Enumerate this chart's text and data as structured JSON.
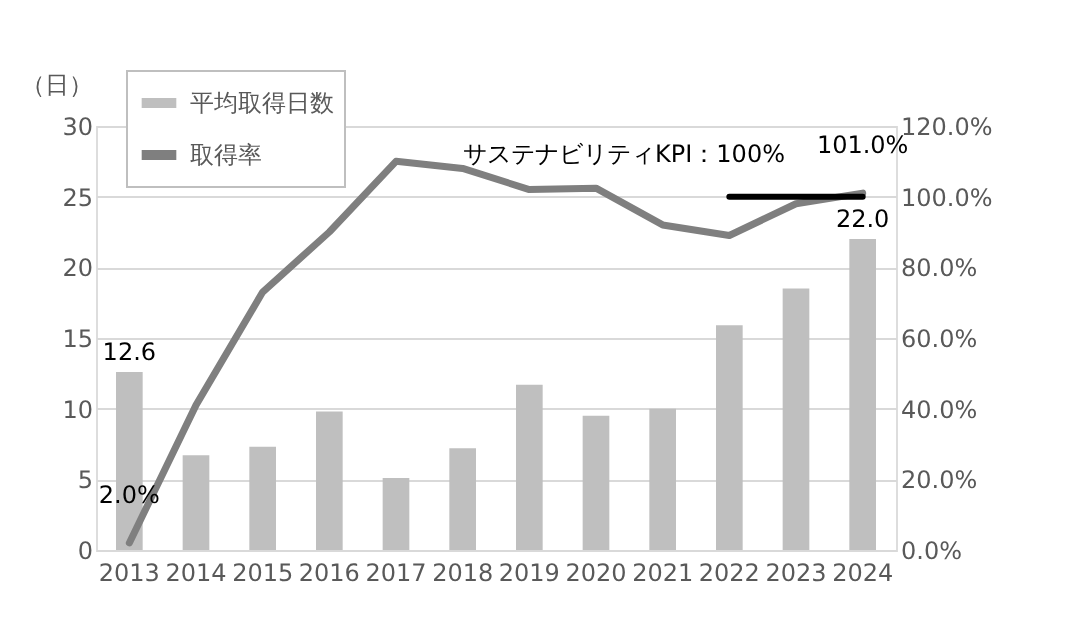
{
  "chart_data": {
    "type": "bar",
    "ylabel": "（日）",
    "categories": [
      "2013",
      "2014",
      "2015",
      "2016",
      "2017",
      "2018",
      "2019",
      "2020",
      "2021",
      "2022",
      "2023",
      "2024"
    ],
    "series": [
      {
        "name": "平均取得日数",
        "color": "#bfbfbf",
        "values": [
          12.6,
          6.7,
          7.3,
          9.8,
          5.1,
          7.2,
          11.7,
          9.5,
          10.0,
          15.9,
          18.5,
          22.0
        ],
        "value_labels": [
          "12.6",
          null,
          null,
          null,
          null,
          null,
          null,
          null,
          null,
          null,
          null,
          "22.0"
        ]
      },
      {
        "name": "取得率",
        "type": "line",
        "axis": "y2",
        "color": "#7f7f7f",
        "values": [
          2.0,
          41,
          73,
          90,
          110,
          108,
          102,
          102.4,
          92,
          89,
          98,
          101.0
        ],
        "value_labels": [
          "2.0%",
          null,
          null,
          null,
          null,
          null,
          null,
          null,
          null,
          null,
          null,
          "101.0%"
        ]
      },
      {
        "type": "line",
        "axis": "y2",
        "color": "#000000",
        "values": [
          null,
          null,
          null,
          null,
          null,
          null,
          null,
          null,
          null,
          100,
          100,
          100
        ]
      }
    ],
    "ylim": [
      0,
      30
    ],
    "yticks": [
      0,
      5,
      10,
      15,
      20,
      25,
      30
    ],
    "y2lim": [
      0,
      120
    ],
    "y2ticks": [
      {
        "value": 0,
        "label": "0.0%"
      },
      {
        "value": 20,
        "label": "20.0%"
      },
      {
        "value": 40,
        "label": "40.0%"
      },
      {
        "value": 60,
        "label": "60.0%"
      },
      {
        "value": 80,
        "label": "80.0%"
      },
      {
        "value": 100,
        "label": "100.0%"
      },
      {
        "value": 120,
        "label": "120.0%"
      }
    ],
    "annotations": [
      "サステナビリティKPI：100%"
    ],
    "grid": "y",
    "legend": "top left"
  }
}
